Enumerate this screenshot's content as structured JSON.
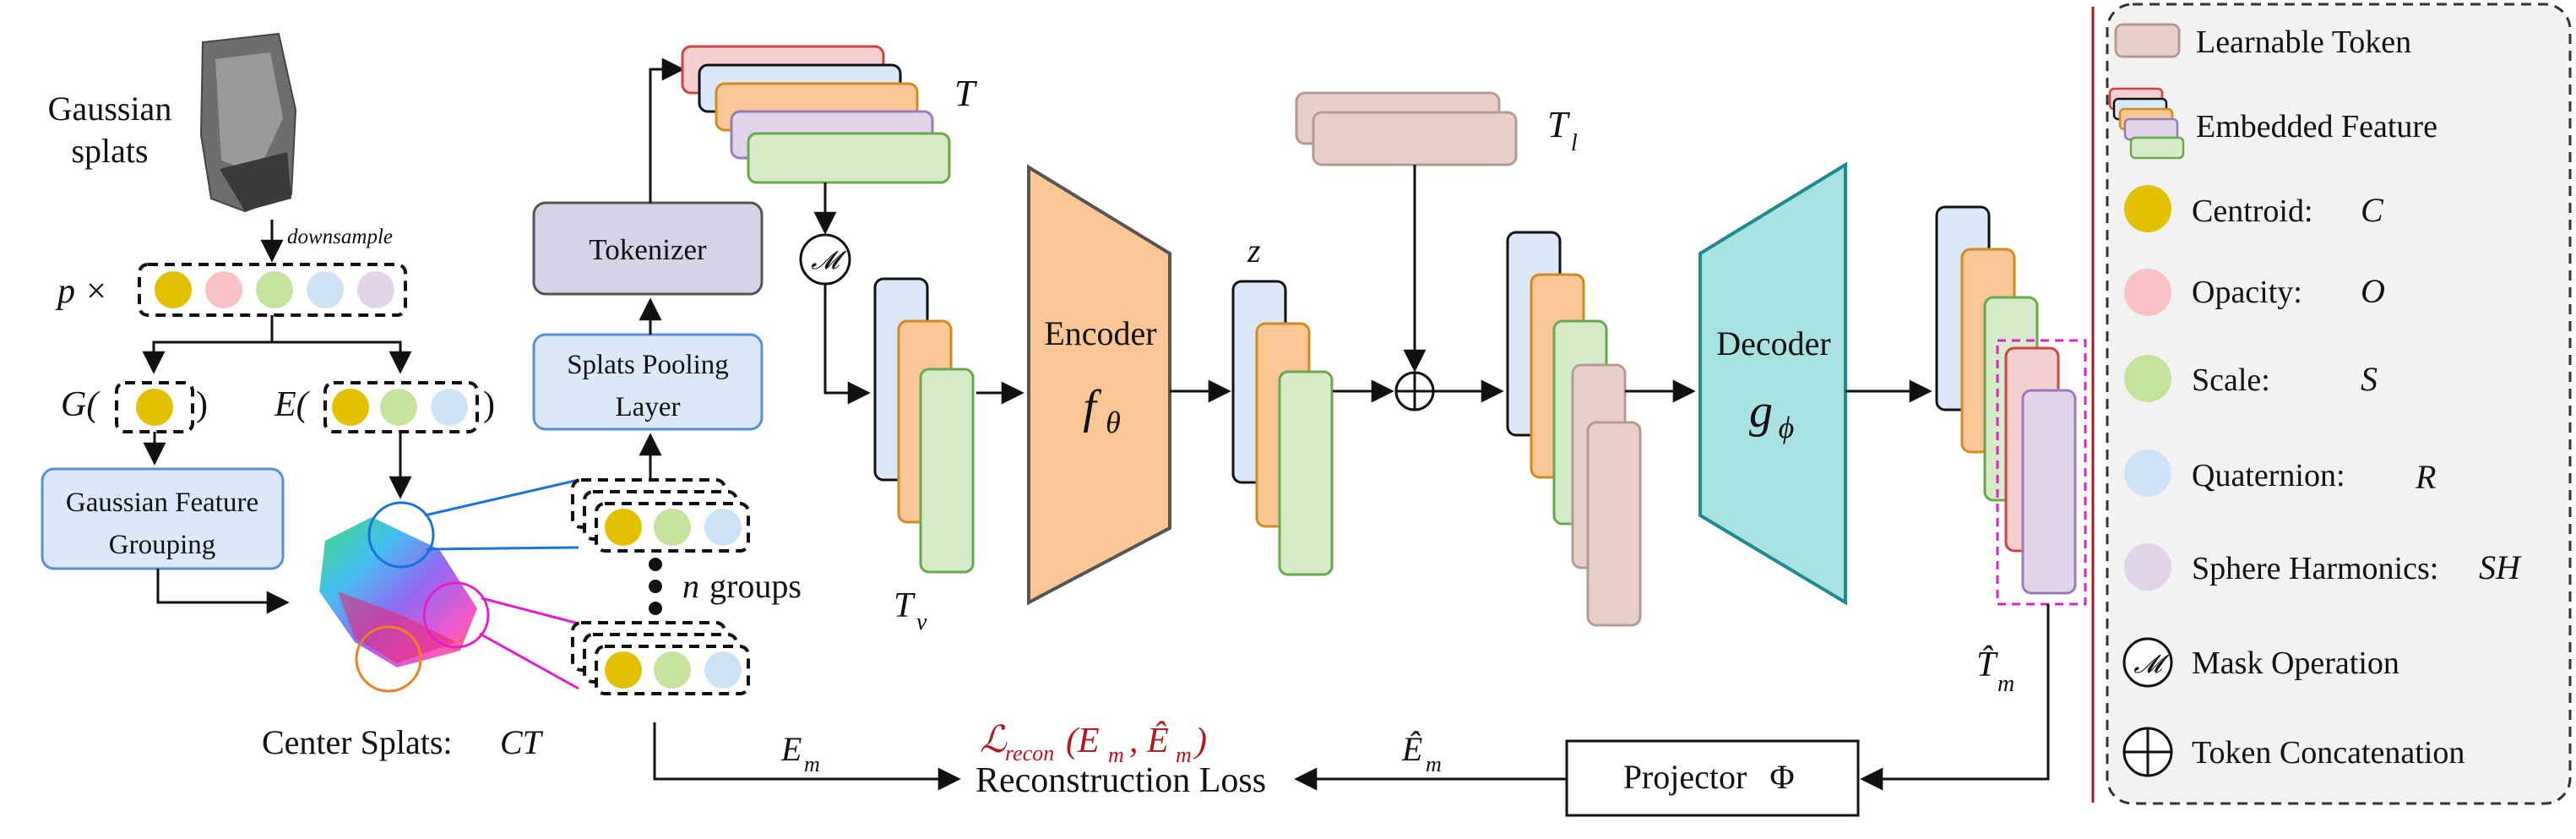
{
  "input": {
    "title_line1": "Gaussian",
    "title_line2": "splats",
    "downsample": "downsample",
    "p_label": "p ×",
    "G_label": "G(",
    "G_close": ")",
    "E_label": "E(",
    "E_close": ")",
    "grouping_line1": "Gaussian Feature",
    "grouping_line2": "Grouping",
    "center_splats_label": "Center Splats:",
    "center_splats_math": "CT",
    "n_groups_var": "n",
    "n_groups_text": "groups"
  },
  "tokenizer": {
    "tokenizer_label": "Tokenizer",
    "pooling_line1": "Splats Pooling",
    "pooling_line2": "Layer",
    "T": "T",
    "Tv": "T",
    "Tv_sub": "v",
    "Tl": "T",
    "Tl_sub": "l",
    "mask_symbol": "𝓜"
  },
  "encoder": {
    "label": "Encoder",
    "fn": "f",
    "fn_sub": "θ",
    "z": "z"
  },
  "decoder": {
    "label": "Decoder",
    "fn": "g",
    "fn_sub": "ϕ"
  },
  "output": {
    "Tm": "T̂",
    "Tm_sub": "m"
  },
  "bottom": {
    "Em": "E",
    "Em_sub": "m",
    "Em_hat": "Ê",
    "Em_hat_sub": "m",
    "loss_math": "ℒ",
    "loss_math_sub": "recon",
    "loss_math_args": "(E",
    "loss_math_args2": "m",
    "loss_math_args3": ", Ê",
    "loss_math_args4": "m",
    "loss_math_args5": ")",
    "loss_text": "Reconstruction Loss",
    "projector_label": "Projector",
    "projector_symbol": "Φ"
  },
  "legend": {
    "learnable_token": "Learnable Token",
    "embedded_feature": "Embedded Feature",
    "centroid": "Centroid:",
    "centroid_sym": "C",
    "opacity": "Opacity:",
    "opacity_sym": "O",
    "scale": "Scale:",
    "scale_sym": "S",
    "quaternion": "Quaternion:",
    "quaternion_sym": "R",
    "sh": "Sphere Harmonics:",
    "sh_sym": "SH",
    "mask_op": "Mask Operation",
    "token_concat": "Token Concatenation"
  },
  "colors": {
    "centroid": "#e2c200",
    "opacity": "#f9c3c6",
    "scale": "#c5e39d",
    "quaternion": "#cfe3f7",
    "sh": "#e1d5ea",
    "encoder": "#f9c796",
    "decoder": "#a9e2e3",
    "tokenizer": "#d7d2e7",
    "blue_box": "#dae8f9",
    "learnable": "#e8d0ca",
    "loss_red": "#b0191f",
    "magenta": "#e020c8"
  }
}
